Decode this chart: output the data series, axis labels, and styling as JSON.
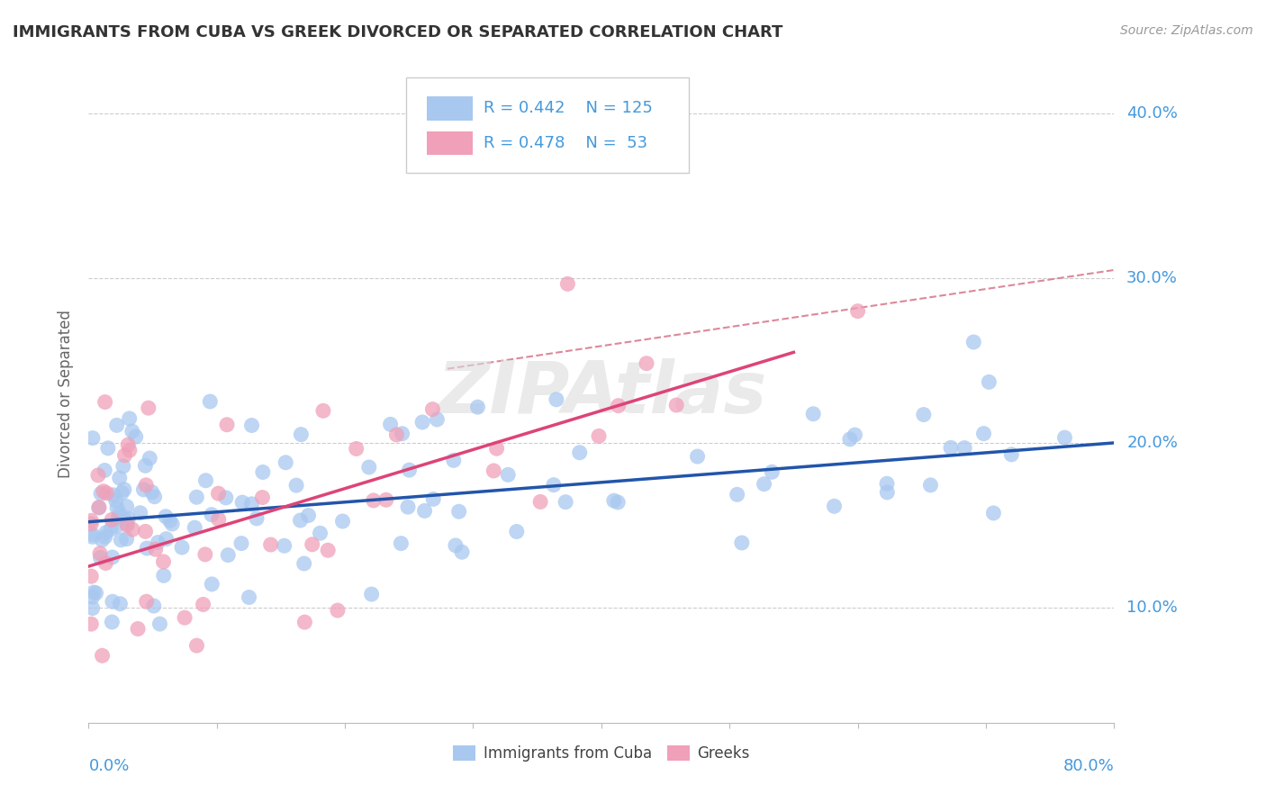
{
  "title": "IMMIGRANTS FROM CUBA VS GREEK DIVORCED OR SEPARATED CORRELATION CHART",
  "source": "Source: ZipAtlas.com",
  "ylabel": "Divorced or Separated",
  "legend_label1": "Immigrants from Cuba",
  "legend_label2": "Greeks",
  "R1": 0.442,
  "N1": 125,
  "R2": 0.478,
  "N2": 53,
  "xlim": [
    0.0,
    80.0
  ],
  "ylim": [
    3.0,
    43.0
  ],
  "yticks": [
    10.0,
    20.0,
    30.0,
    40.0
  ],
  "color_blue": "#A8C8F0",
  "color_blue_line": "#2255AA",
  "color_pink": "#F0A0B8",
  "color_pink_line": "#DD4477",
  "color_text_blue": "#4499DD",
  "color_dash": "#DD8899",
  "watermark_color": "#DDDDDD",
  "blue_line_x0": 0.0,
  "blue_line_y0": 15.2,
  "blue_line_x1": 80.0,
  "blue_line_y1": 20.0,
  "pink_line_x0": 0.0,
  "pink_line_y0": 12.5,
  "pink_line_x1": 55.0,
  "pink_line_y1": 25.5,
  "dash_line_x0": 28.0,
  "dash_line_y0": 24.5,
  "dash_line_x1": 80.0,
  "dash_line_y1": 30.5
}
